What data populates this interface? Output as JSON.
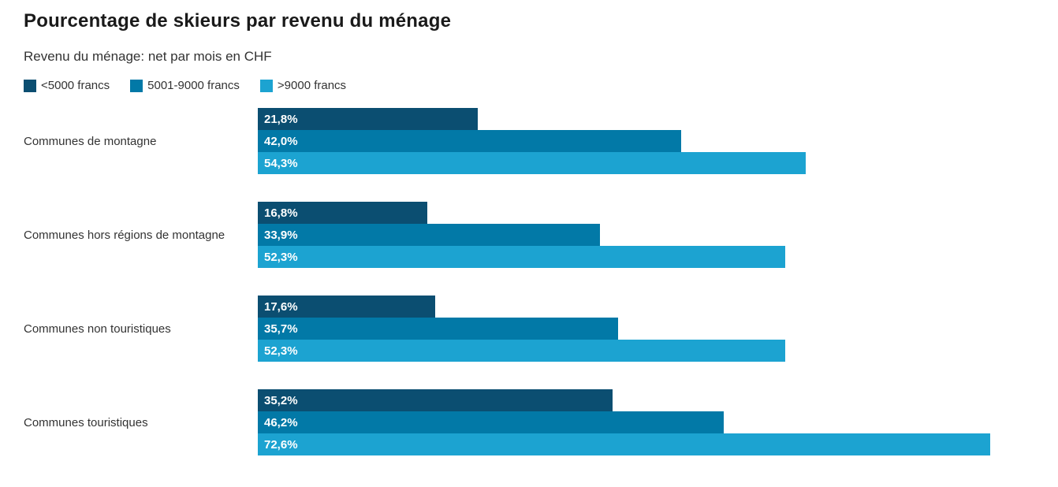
{
  "header": {
    "title": "Pourcentage de skieurs par revenu du ménage",
    "subtitle": "Revenu du ménage: net par mois en CHF"
  },
  "chart_data": {
    "type": "bar",
    "orientation": "horizontal",
    "title": "Pourcentage de skieurs par revenu du ménage",
    "subtitle": "Revenu du ménage: net par mois en CHF",
    "legend_position": "top",
    "grid": false,
    "axis_visible": false,
    "xlim": [
      0,
      72.6
    ],
    "categories": [
      "Communes de montagne",
      "Communes hors régions de montagne",
      "Communes non touristiques",
      "Communes touristiques"
    ],
    "series": [
      {
        "name": "<5000 francs",
        "color": "#0B4E71",
        "values": [
          21.8,
          16.8,
          17.6,
          35.2
        ],
        "labels": [
          "21,8%",
          "16,8%",
          "17,6%",
          "35,2%"
        ]
      },
      {
        "name": "5001-9000 francs",
        "color": "#0279A7",
        "values": [
          42.0,
          33.9,
          35.7,
          46.2
        ],
        "labels": [
          "42,0%",
          "33,9%",
          "35,7%",
          "46,2%"
        ]
      },
      {
        "name": ">9000 francs",
        "color": "#1CA3D1",
        "values": [
          54.3,
          52.3,
          52.3,
          72.6
        ],
        "labels": [
          "54,3%",
          "52,3%",
          "52,3%",
          "72,6%"
        ]
      }
    ]
  }
}
